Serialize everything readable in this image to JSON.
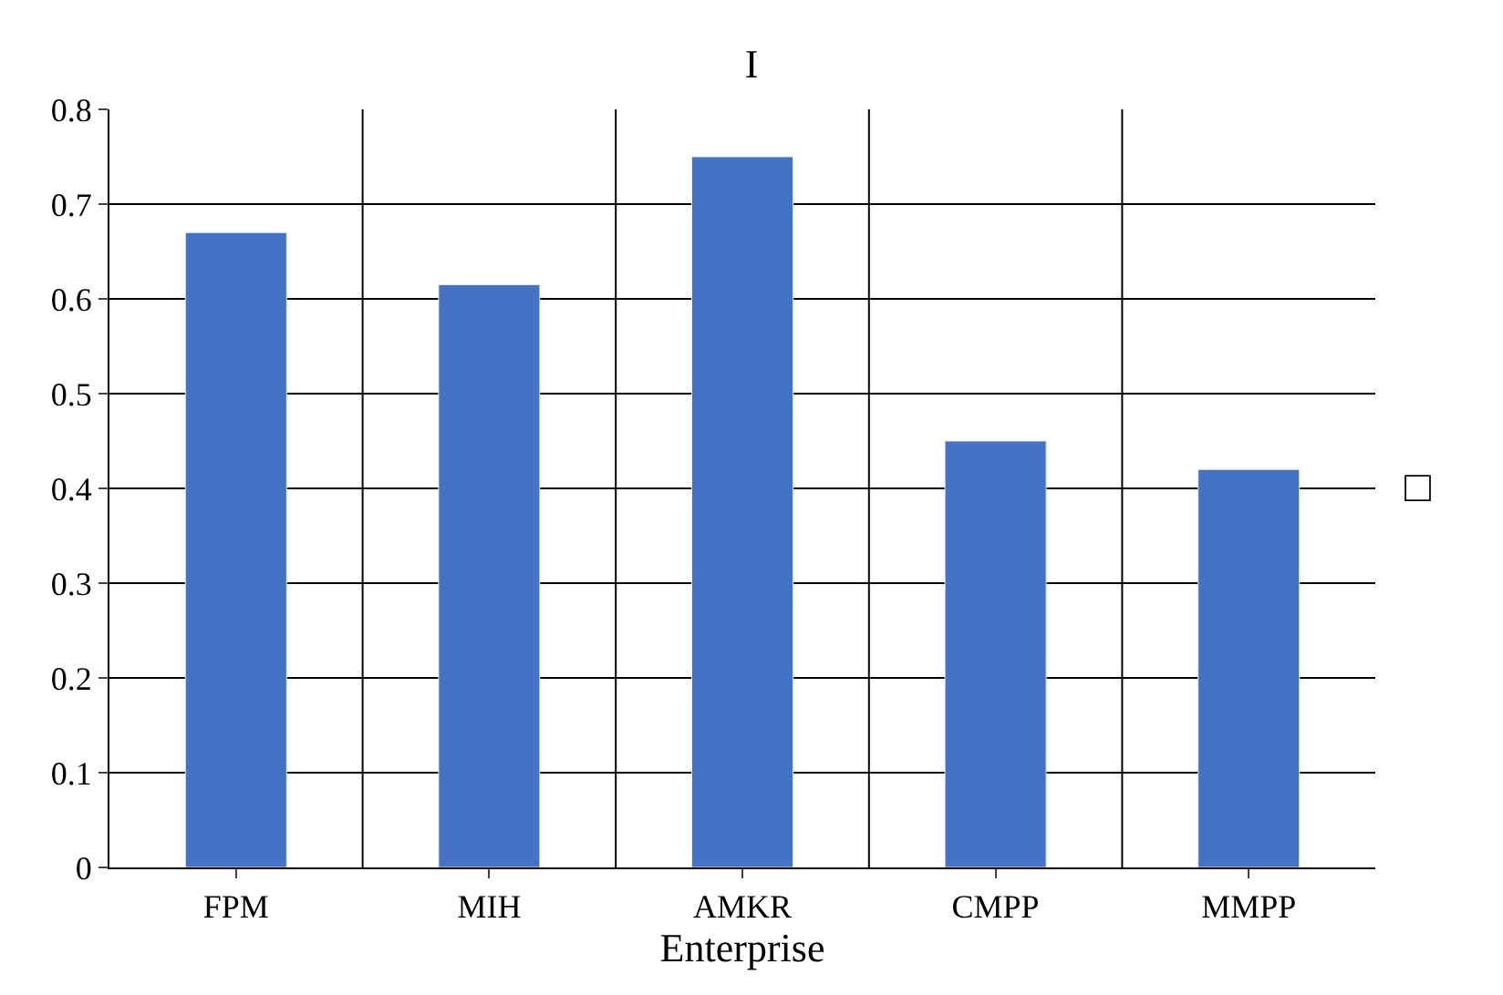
{
  "chart_data": {
    "type": "bar",
    "title": "I",
    "xlabel": "Enterprise",
    "categories": [
      "FPM",
      "MIH",
      "AMKR",
      "CMPP",
      "MMPP"
    ],
    "values": [
      0.67,
      0.615,
      0.75,
      0.45,
      0.42
    ],
    "color": "#4472c4",
    "ylim": [
      0,
      0.8
    ],
    "yticks": [
      0,
      0.1,
      0.2,
      0.3,
      0.4,
      0.5,
      0.6,
      0.7,
      0.8
    ],
    "grid": true,
    "annotations": [
      "□"
    ]
  }
}
